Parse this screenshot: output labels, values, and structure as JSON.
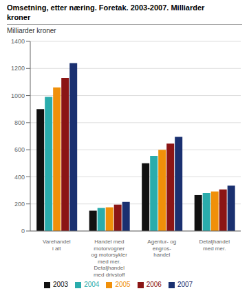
{
  "chart_data": {
    "type": "bar",
    "title": "Omsetning, etter næring. Foretak. 2003-2007. Milliarder\nkroner",
    "ylabel": "Milliarder kroner",
    "categories": [
      "Varehandel\ni alt",
      "Handel med\nmotorvogner\nog motorsykler\nmed mer.\nDetaljhandel\nmed drivstoff",
      "Agentur- og\nengros-\nhandel",
      "Detaljhandel\nmed mer."
    ],
    "series": [
      {
        "name": "2003",
        "color": "#111111",
        "values": [
          900,
          150,
          500,
          265
        ]
      },
      {
        "name": "2004",
        "color": "#2aacac",
        "values": [
          990,
          170,
          555,
          280
        ]
      },
      {
        "name": "2005",
        "color": "#f0900a",
        "values": [
          1060,
          175,
          600,
          292
        ]
      },
      {
        "name": "2006",
        "color": "#8b1515",
        "values": [
          1130,
          195,
          645,
          307
        ]
      },
      {
        "name": "2007",
        "color": "#1a3070",
        "values": [
          1240,
          215,
          695,
          335
        ]
      }
    ],
    "ylim": [
      0,
      1400
    ],
    "yticks": [
      0,
      200,
      400,
      600,
      800,
      1000,
      1200,
      1400
    ],
    "grid": true,
    "legend": "bottom"
  }
}
